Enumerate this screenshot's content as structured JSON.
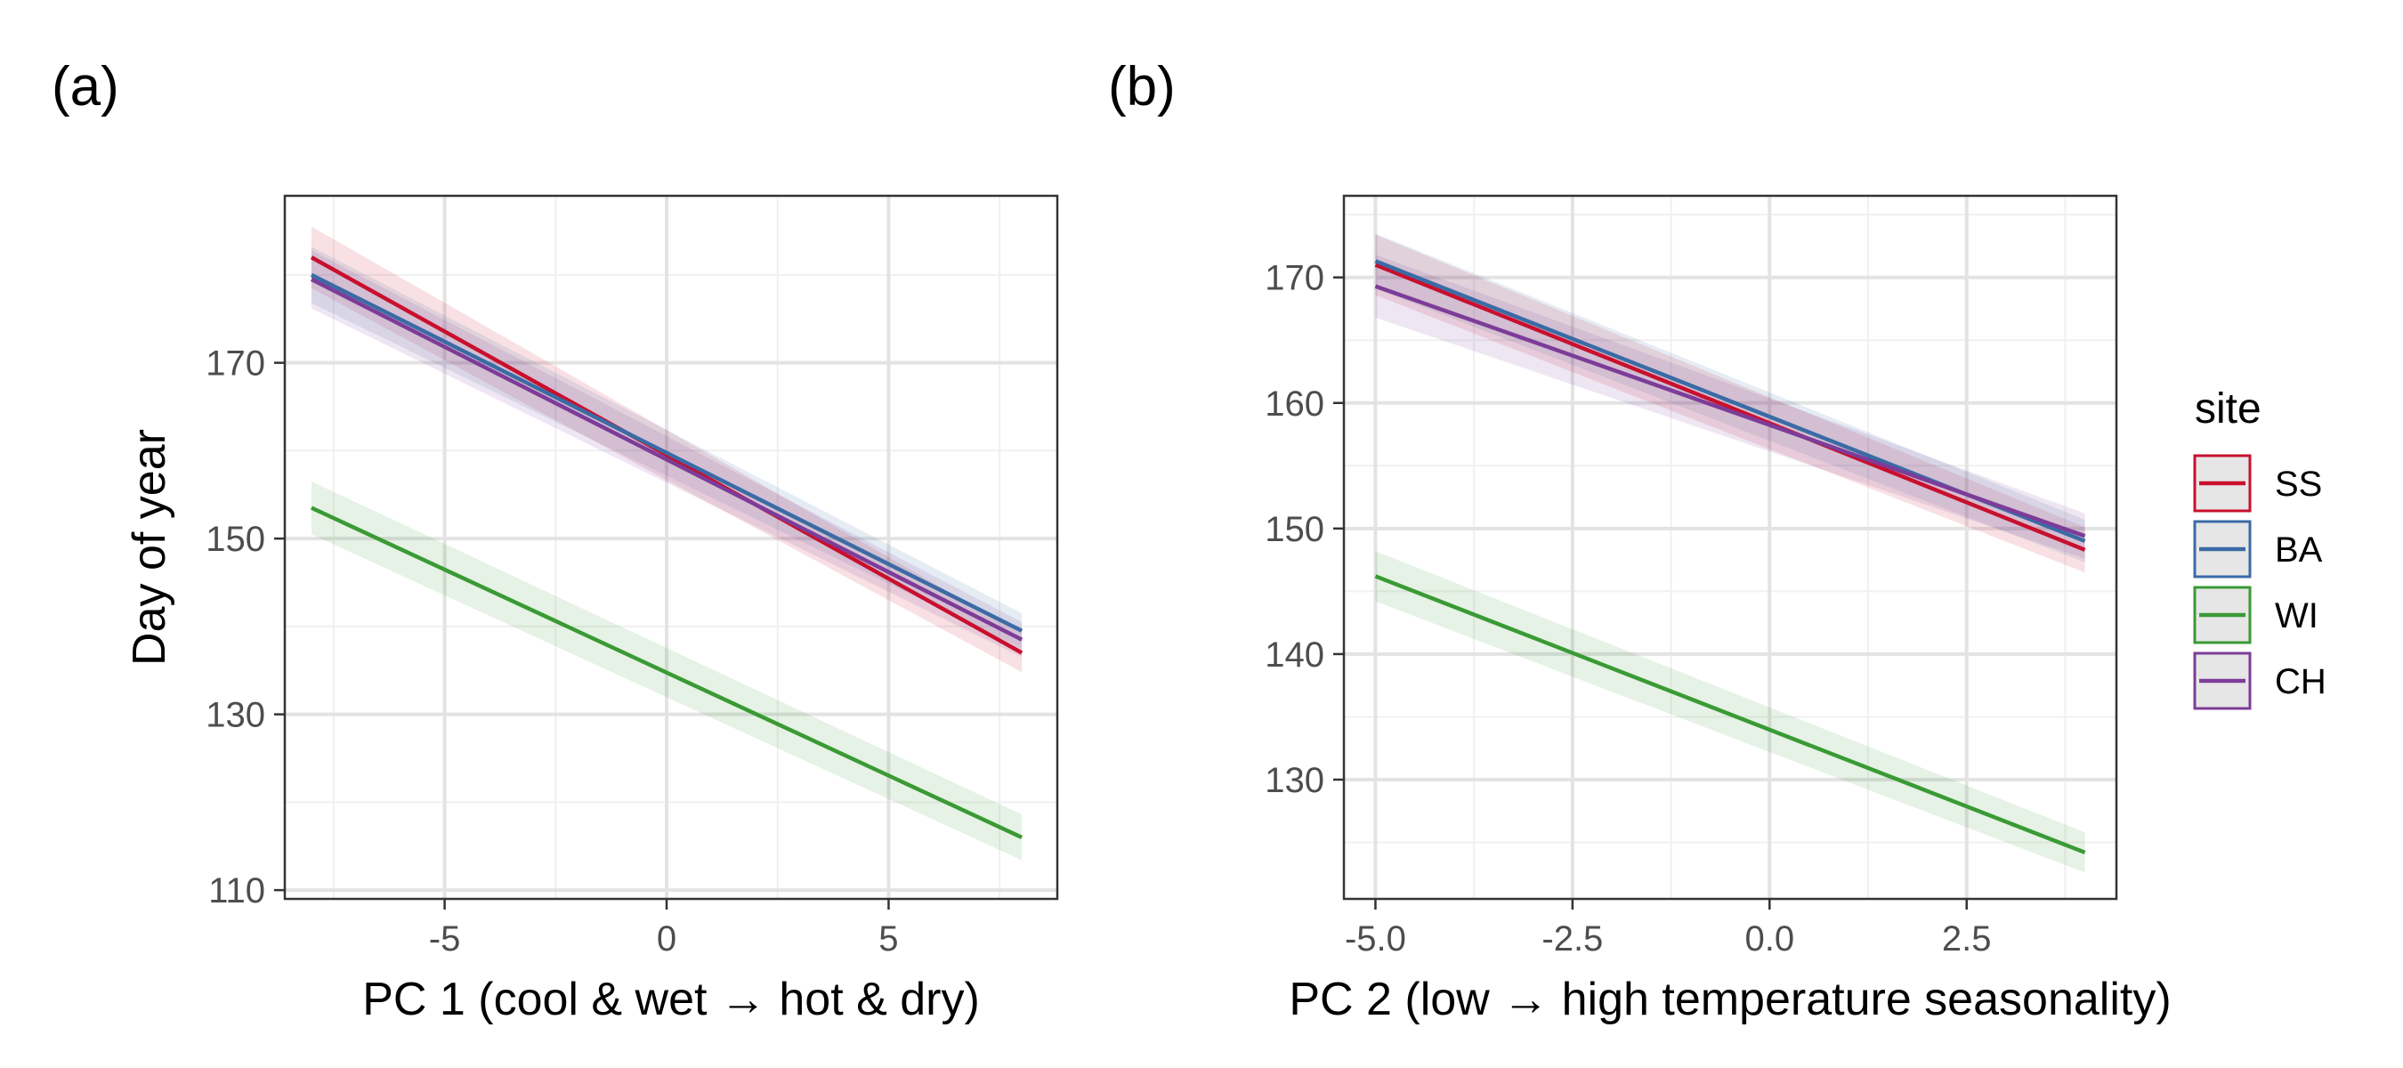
{
  "chart_data": [
    {
      "type": "line",
      "panel_label": "(a)",
      "xlabel": "PC 1 (cool & wet → hot & dry)",
      "ylabel": "Day of year",
      "xlim": [
        -8.6,
        8.8
      ],
      "ylim": [
        109,
        189
      ],
      "x_ticks": [
        -5,
        0,
        5
      ],
      "x_tick_labels": [
        "-5",
        "0",
        "5"
      ],
      "y_ticks": [
        110,
        130,
        150,
        170
      ],
      "y_tick_labels": [
        "110",
        "130",
        "150",
        "170"
      ],
      "grid": true,
      "series": [
        {
          "name": "SS",
          "color": "#C8102E",
          "x": [
            -8,
            8
          ],
          "y": [
            182,
            137
          ],
          "ci_halfwidth": [
            3.5,
            2.2
          ]
        },
        {
          "name": "BA",
          "color": "#3A6BA5",
          "x": [
            -8,
            8
          ],
          "y": [
            180,
            139.5
          ],
          "ci_halfwidth": [
            3.2,
            2.0
          ]
        },
        {
          "name": "WI",
          "color": "#3A9A35",
          "x": [
            -8,
            8
          ],
          "y": [
            153.5,
            116
          ],
          "ci_halfwidth": [
            3.0,
            2.6
          ]
        },
        {
          "name": "CH",
          "color": "#7D3C98",
          "x": [
            -8,
            8
          ],
          "y": [
            179.5,
            138.5
          ],
          "ci_halfwidth": [
            3.3,
            2.0
          ]
        }
      ]
    },
    {
      "type": "line",
      "panel_label": "(b)",
      "xlabel": "PC 2 (low → high temperature seasonality)",
      "ylabel": "",
      "xlim": [
        -5.4,
        4.4
      ],
      "ylim": [
        120.5,
        176.5
      ],
      "x_ticks": [
        -5,
        -2.5,
        0,
        2.5
      ],
      "x_tick_labels": [
        "-5.0",
        "-2.5",
        "0.0",
        "2.5"
      ],
      "y_ticks": [
        130,
        140,
        150,
        160,
        170
      ],
      "y_tick_labels": [
        "130",
        "140",
        "150",
        "160",
        "170"
      ],
      "grid": true,
      "series": [
        {
          "name": "SS",
          "color": "#C8102E",
          "x": [
            -5,
            4
          ],
          "y": [
            171,
            148.3
          ],
          "ci_halfwidth": [
            2.4,
            1.8
          ]
        },
        {
          "name": "BA",
          "color": "#3A6BA5",
          "x": [
            -5,
            4
          ],
          "y": [
            171.3,
            149
          ],
          "ci_halfwidth": [
            2.2,
            1.7
          ]
        },
        {
          "name": "WI",
          "color": "#3A9A35",
          "x": [
            -5,
            4
          ],
          "y": [
            146.2,
            124.2
          ],
          "ci_halfwidth": [
            2.0,
            1.6
          ]
        },
        {
          "name": "CH",
          "color": "#7D3C98",
          "x": [
            -5,
            4
          ],
          "y": [
            169.3,
            149.4
          ],
          "ci_halfwidth": [
            2.5,
            1.8
          ]
        }
      ]
    }
  ],
  "legend": {
    "title": "site",
    "items": [
      {
        "label": "SS",
        "color": "#C8102E"
      },
      {
        "label": "BA",
        "color": "#3A6BA5"
      },
      {
        "label": "WI",
        "color": "#3A9A35"
      },
      {
        "label": "CH",
        "color": "#7D3C98"
      }
    ]
  }
}
